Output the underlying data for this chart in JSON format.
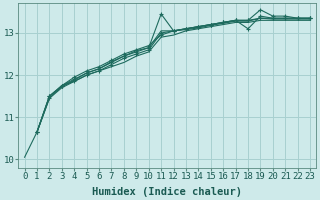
{
  "xlabel": "Humidex (Indice chaleur)",
  "bg_color": "#ceeaea",
  "grid_color": "#a8d0d0",
  "line_color": "#1e6b5e",
  "xlim": [
    -0.5,
    23.5
  ],
  "ylim": [
    9.8,
    13.7
  ],
  "yticks": [
    10,
    11,
    12,
    13
  ],
  "xticks": [
    0,
    1,
    2,
    3,
    4,
    5,
    6,
    7,
    8,
    9,
    10,
    11,
    12,
    13,
    14,
    15,
    16,
    17,
    18,
    19,
    20,
    21,
    22,
    23
  ],
  "series": [
    {
      "x": [
        0,
        1,
        2,
        3,
        4,
        5,
        6,
        7,
        8,
        9,
        10,
        11,
        12,
        13,
        14,
        15,
        16,
        17,
        18,
        19,
        20,
        21,
        22,
        23
      ],
      "y": [
        10.05,
        10.65,
        11.45,
        11.7,
        11.85,
        12.0,
        12.1,
        12.2,
        12.3,
        12.45,
        12.55,
        12.9,
        12.95,
        13.05,
        13.1,
        13.15,
        13.2,
        13.25,
        13.25,
        13.3,
        13.3,
        13.3,
        13.3,
        13.3
      ],
      "marker": false
    },
    {
      "x": [
        1,
        2,
        3,
        4,
        5,
        6,
        7,
        8,
        9,
        10,
        11,
        12,
        13,
        14,
        15,
        16,
        17,
        18,
        19,
        20,
        21,
        22,
        23
      ],
      "y": [
        10.65,
        11.5,
        11.75,
        11.95,
        12.1,
        12.2,
        12.35,
        12.5,
        12.6,
        12.7,
        12.95,
        13.05,
        13.1,
        13.15,
        13.2,
        13.25,
        13.3,
        13.3,
        13.35,
        13.35,
        13.35,
        13.35,
        13.35
      ],
      "marker": true
    },
    {
      "x": [
        1,
        2,
        3,
        4,
        5,
        6,
        7,
        8,
        9,
        10,
        11,
        12,
        13,
        14,
        15,
        16,
        17,
        18,
        19,
        20,
        21,
        22,
        23
      ],
      "y": [
        10.65,
        11.5,
        11.75,
        11.9,
        12.05,
        12.15,
        12.3,
        12.45,
        12.55,
        12.65,
        13.45,
        13.05,
        13.1,
        13.15,
        13.2,
        13.25,
        13.3,
        13.3,
        13.55,
        13.4,
        13.4,
        13.35,
        13.35
      ],
      "marker": true
    },
    {
      "x": [
        1,
        2,
        3,
        4,
        5,
        6,
        7,
        8,
        9,
        10,
        11,
        12,
        13,
        14,
        15,
        16,
        17,
        18,
        19,
        20,
        21,
        22,
        23
      ],
      "y": [
        10.65,
        11.45,
        11.75,
        11.85,
        12.0,
        12.1,
        12.25,
        12.4,
        12.5,
        12.6,
        13.0,
        13.05,
        13.1,
        13.15,
        13.2,
        13.25,
        13.3,
        13.1,
        13.4,
        13.35,
        13.35,
        13.35,
        13.35
      ],
      "marker": true
    },
    {
      "x": [
        1,
        2,
        3,
        4,
        5,
        6,
        7,
        8,
        9,
        10,
        11,
        12,
        13,
        14,
        15,
        16,
        17,
        18,
        19,
        20,
        21,
        22,
        23
      ],
      "y": [
        10.65,
        11.5,
        11.72,
        11.88,
        12.05,
        12.15,
        12.32,
        12.45,
        12.58,
        12.65,
        13.05,
        13.05,
        13.08,
        13.12,
        13.18,
        13.23,
        13.28,
        13.28,
        13.35,
        13.33,
        13.33,
        13.33,
        13.33
      ],
      "marker": false
    }
  ],
  "font_family": "monospace",
  "tick_fontsize": 6.5,
  "label_fontsize": 7.5
}
